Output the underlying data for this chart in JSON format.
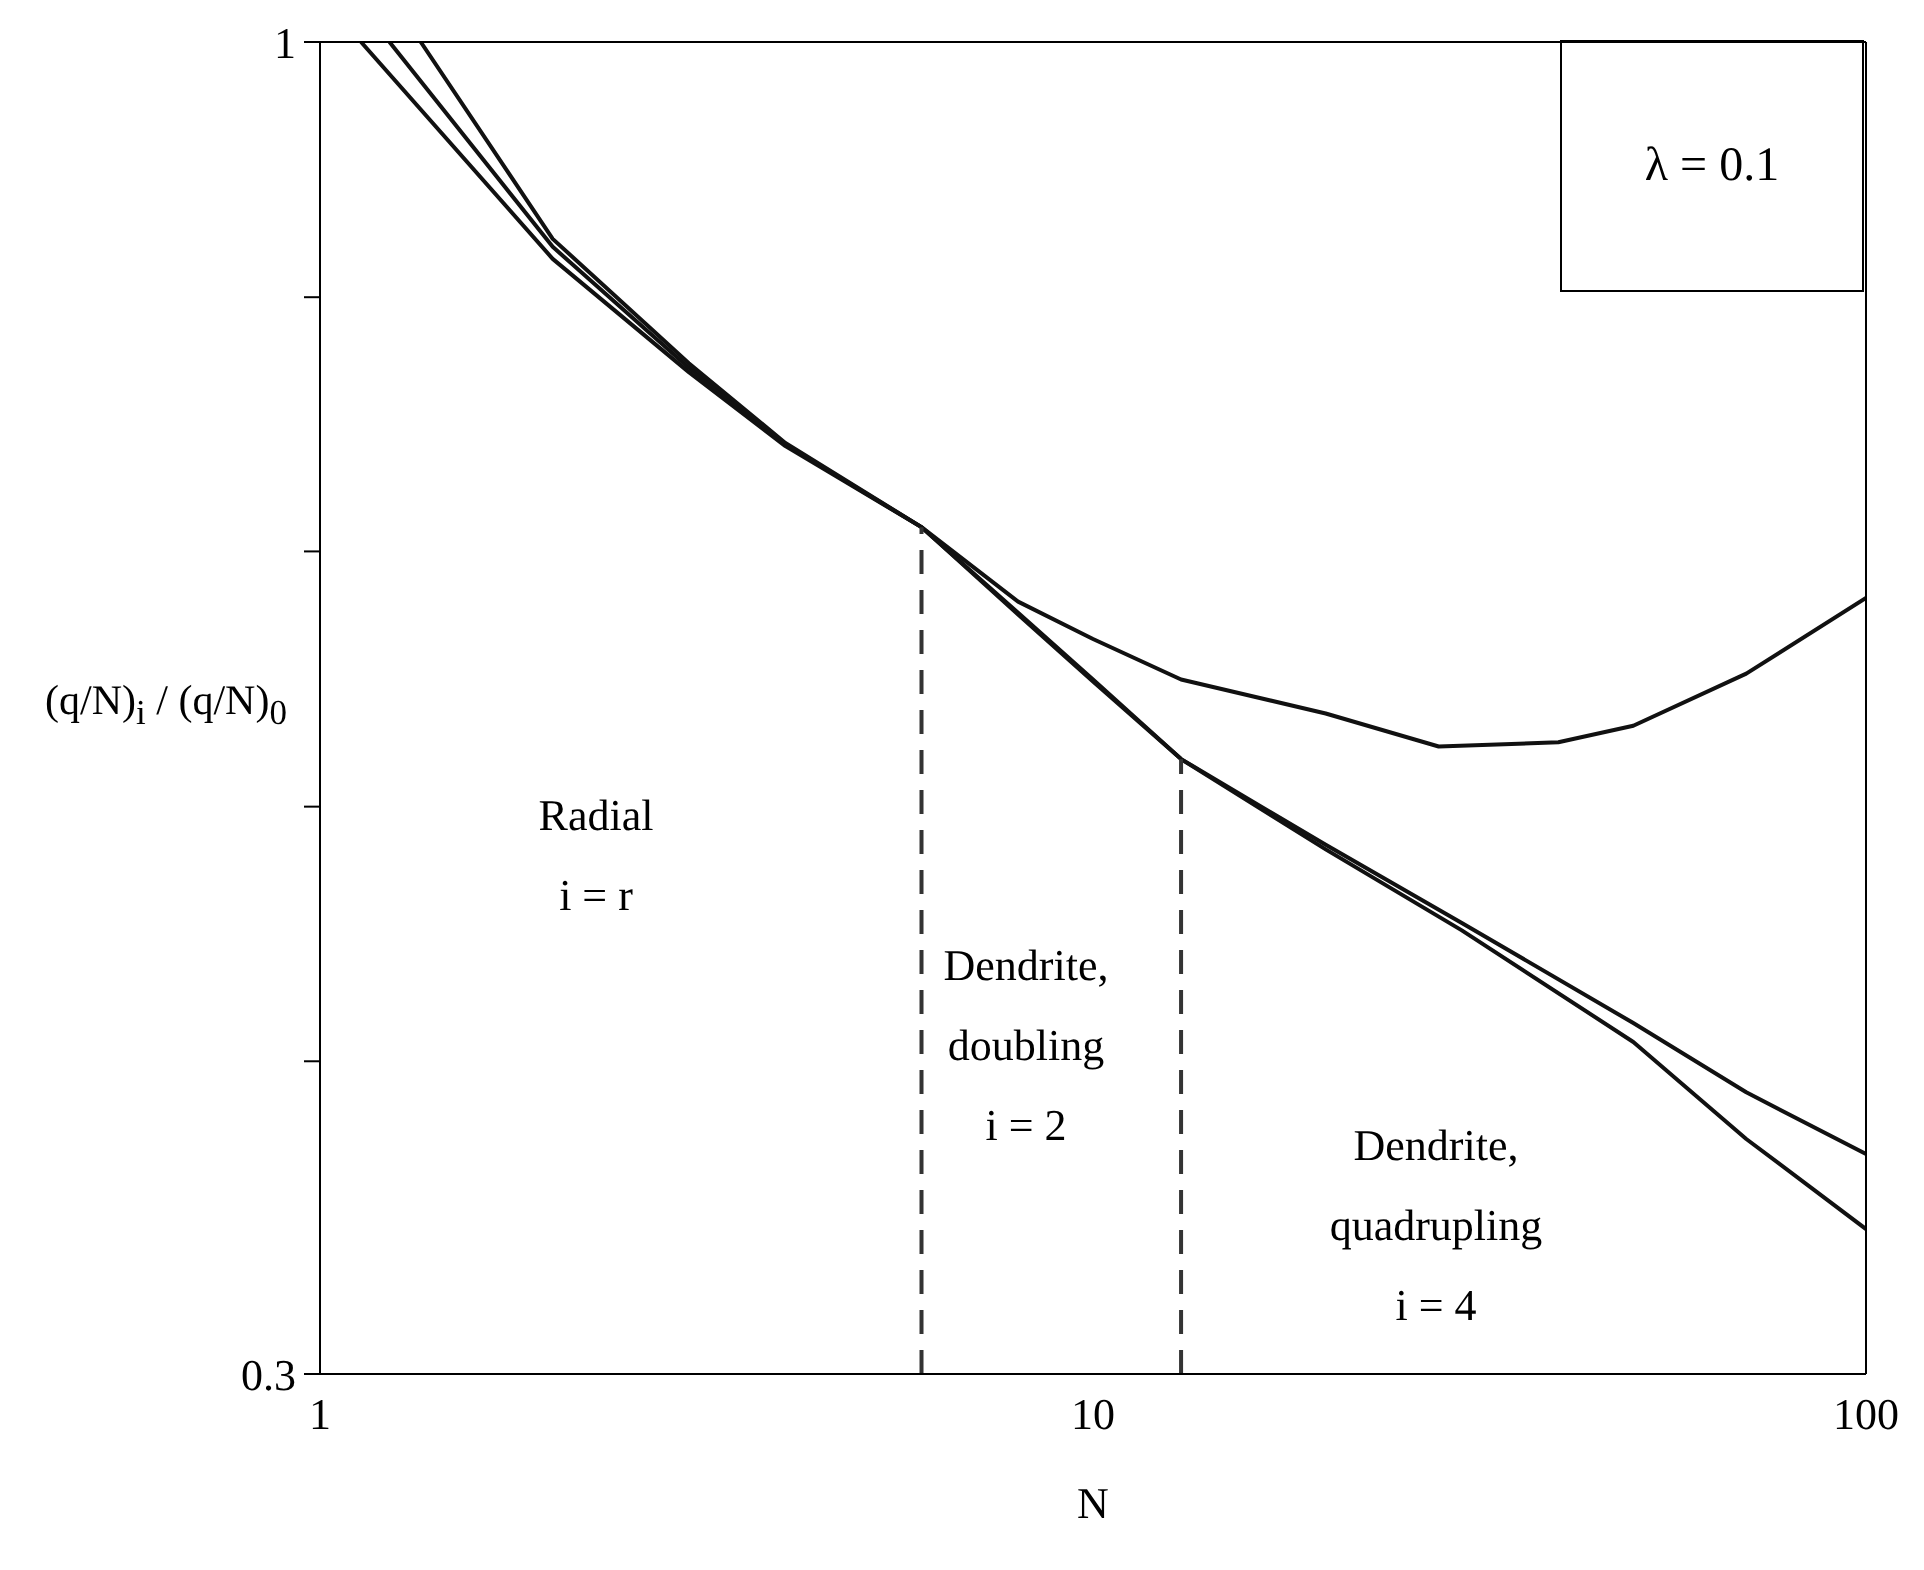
{
  "chart_data": {
    "type": "line",
    "xlabel": "N",
    "ylabel": "(q/N)$_{i}$ / (q/N)$_{0}$",
    "log": "xy",
    "xlim": [
      1,
      100
    ],
    "xticks": [
      1,
      10,
      100
    ],
    "ylim": [
      0.3,
      1
    ],
    "yticks": [
      0.3,
      {
        "value": 0.398,
        "label": null
      },
      {
        "value": 0.501,
        "label": null
      },
      {
        "value": 0.631,
        "label": null
      },
      {
        "value": 0.794,
        "label": null
      },
      1
    ],
    "marker": "none",
    "series": [
      {
        "color": "#111111",
        "x": [
          1.13,
          2,
          3,
          4,
          6,
          8,
          10,
          13,
          20,
          28,
          40,
          50,
          70,
          100
        ],
        "values": [
          1,
          0.822,
          0.742,
          0.694,
          0.645,
          0.603,
          0.583,
          0.562,
          0.545,
          0.529,
          0.531,
          0.539,
          0.565,
          0.605
        ]
      },
      {
        "color": "#111111",
        "x": [
          1.23,
          2,
          3,
          4,
          6,
          8,
          10,
          13,
          20,
          30,
          50,
          70,
          100
        ],
        "values": [
          1,
          0.831,
          0.745,
          0.695,
          0.645,
          0.597,
          0.562,
          0.523,
          0.484,
          0.451,
          0.412,
          0.387,
          0.366
        ]
      },
      {
        "color": "#111111",
        "x": [
          1.35,
          2,
          3,
          4,
          6,
          8,
          10,
          13,
          20,
          30,
          50,
          70,
          100
        ],
        "values": [
          1,
          0.837,
          0.748,
          0.696,
          0.645,
          0.596,
          0.561,
          0.523,
          0.482,
          0.448,
          0.405,
          0.371,
          0.342
        ]
      },
      {
        "color": "#333333",
        "line_style": "dashed",
        "x": [
          6,
          6
        ],
        "values": [
          0.3,
          0.645
        ]
      },
      {
        "color": "#333333",
        "line_style": "dashed",
        "x": [
          13,
          13
        ],
        "values": [
          0.3,
          0.523
        ]
      }
    ],
    "annotations": [
      "λ = 0.1",
      "Radial\ni = r",
      "Dendrite,\ndoubling\ni = 2",
      "Dendrite,\nquadrupling\ni = 4"
    ]
  }
}
